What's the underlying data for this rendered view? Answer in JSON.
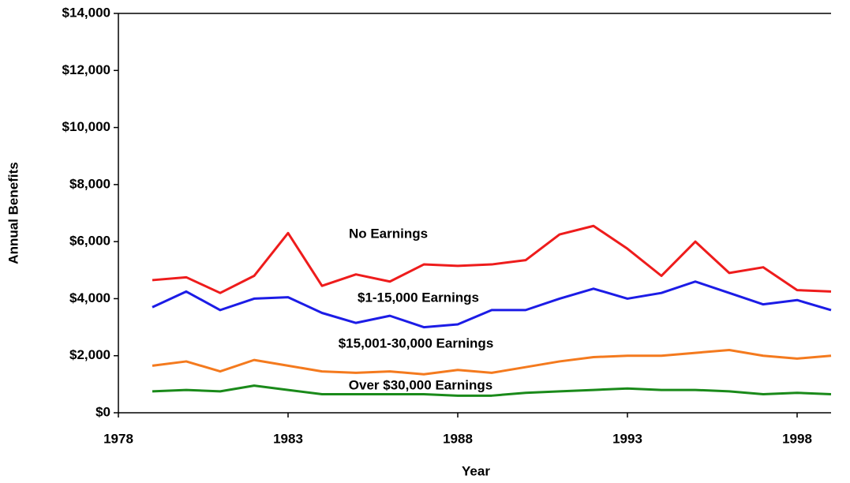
{
  "chart_data": {
    "type": "line",
    "x_label": "Year",
    "y_label": "Annual Benefits",
    "x": [
      1979,
      1980,
      1981,
      1982,
      1983,
      1984,
      1985,
      1986,
      1987,
      1988,
      1989,
      1990,
      1991,
      1992,
      1993,
      1994,
      1995,
      1996,
      1997,
      1998,
      1999
    ],
    "series": [
      {
        "name": "No Earnings",
        "color": "#ee1c1c",
        "values": [
          4650,
          4750,
          4200,
          4800,
          6300,
          4450,
          4850,
          4600,
          5200,
          5150,
          5200,
          5350,
          6250,
          6550,
          5750,
          4800,
          6000,
          4900,
          5100,
          4300,
          4250
        ]
      },
      {
        "name": "$1-15,000 Earnings",
        "color": "#1c1ce6",
        "values": [
          3700,
          4250,
          3600,
          4000,
          4050,
          3500,
          3150,
          3400,
          3000,
          3100,
          3600,
          3600,
          4000,
          4350,
          4000,
          4200,
          4600,
          4200,
          3800,
          3950,
          3600
        ]
      },
      {
        "name": "$15,001-30,000 Earnings",
        "color": "#f47a1e",
        "values": [
          1650,
          1800,
          1450,
          1850,
          1650,
          1450,
          1400,
          1450,
          1350,
          1500,
          1400,
          1600,
          1800,
          1950,
          2000,
          2000,
          2100,
          2200,
          2000,
          1900,
          2000
        ]
      },
      {
        "name": "Over $30,000 Earnings",
        "color": "#1a8a1a",
        "values": [
          750,
          800,
          750,
          950,
          800,
          650,
          650,
          650,
          650,
          600,
          600,
          700,
          750,
          800,
          850,
          800,
          800,
          750,
          650,
          700,
          650
        ]
      }
    ],
    "xlim": [
      1978,
      1999
    ],
    "xticks": [
      1978,
      1983,
      1988,
      1993,
      1998
    ],
    "ylim": [
      0,
      14000
    ],
    "yticks": [
      {
        "value": 0,
        "label": "$0"
      },
      {
        "value": 2000,
        "label": "$2,000"
      },
      {
        "value": 4000,
        "label": "$4,000"
      },
      {
        "value": 6000,
        "label": "$6,000"
      },
      {
        "value": 8000,
        "label": "$8,000"
      },
      {
        "value": 10000,
        "label": "$10,000"
      },
      {
        "value": 12000,
        "label": "$12,000"
      },
      {
        "value": 14000,
        "label": "$14,000"
      }
    ],
    "grid": false
  }
}
